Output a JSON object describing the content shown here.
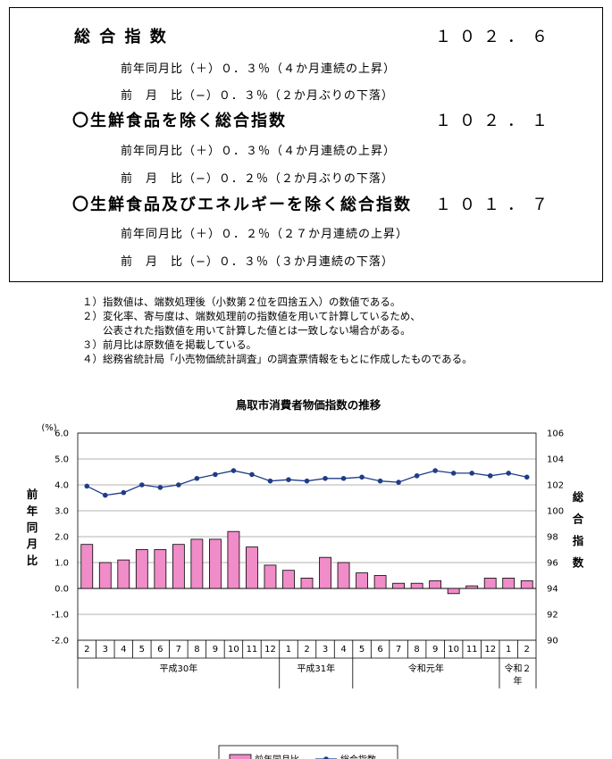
{
  "summary": {
    "rows": [
      {
        "label": "総 合 指 数",
        "value": "１０２．６",
        "subs": [
          "前年同月比（＋）０．３％（４か月連続の上昇）",
          "前　月　比（−）０．３％（２か月ぶりの下落）"
        ]
      },
      {
        "label": "〇生鮮食品を除く総合指数",
        "value": "１０２．１",
        "subs": [
          "前年同月比（＋）０．３％（４か月連続の上昇）",
          "前　月　比（−）０．２％（２か月ぶりの下落）"
        ]
      },
      {
        "label": "〇生鮮食品及びエネルギーを除く総合指数",
        "value": "１０１．７",
        "subs": [
          "前年同月比（＋）０．２％（２７か月連続の上昇）",
          "前　月　比（−）０．３％（３か月連続の下落）"
        ]
      }
    ]
  },
  "notes": [
    "１）指数値は、端数処理後（小数第２位を四捨五入）の数値である。",
    "２）変化率、寄与度は、端数処理前の指数値を用いて計算しているため、",
    "　　公表された指数値を用いて計算した値とは一致しない場合がある。",
    "３）前月比は原数値を掲載している。",
    "４）総務省統計局「小売物価統計調査」の調査票情報をもとに作成したものである。"
  ],
  "chart_data": {
    "type": "bar+line",
    "title": "鳥取市消費者物価指数の推移",
    "left_unit": "(%)",
    "left_axis_label": "前年同月比",
    "right_axis_label": "総合指数",
    "left_ylim": [
      -2.0,
      6.0
    ],
    "left_ticks": [
      "6.0",
      "5.0",
      "4.0",
      "3.0",
      "2.0",
      "1.0",
      "0.0",
      "-1.0",
      "-2.0"
    ],
    "right_ylim": [
      90,
      106
    ],
    "right_ticks": [
      "106",
      "104",
      "102",
      "100",
      "98",
      "96",
      "94",
      "92",
      "90"
    ],
    "categories": [
      "2",
      "3",
      "4",
      "5",
      "6",
      "7",
      "8",
      "9",
      "10",
      "11",
      "12",
      "1",
      "2",
      "3",
      "4",
      "5",
      "6",
      "7",
      "8",
      "9",
      "10",
      "11",
      "12",
      "1",
      "2"
    ],
    "year_groups": [
      {
        "label": "平成30年",
        "count": 11
      },
      {
        "label": "平成31年",
        "count": 4
      },
      {
        "label": "令和元年",
        "count": 8
      },
      {
        "label": "令和２年",
        "count": 2
      }
    ],
    "series": [
      {
        "name": "前年同月比",
        "kind": "bar",
        "axis": "left",
        "color": "#f08cc8",
        "values": [
          1.7,
          1.0,
          1.1,
          1.5,
          1.5,
          1.7,
          1.9,
          1.9,
          2.2,
          1.6,
          0.9,
          0.7,
          0.4,
          1.2,
          1.0,
          0.6,
          0.5,
          0.2,
          0.2,
          0.3,
          -0.2,
          0.1,
          0.4,
          0.4,
          0.3
        ]
      },
      {
        "name": "総合指数",
        "kind": "line",
        "axis": "right",
        "color": "#1f3c88",
        "values": [
          101.9,
          101.2,
          101.4,
          102.0,
          101.8,
          102.0,
          102.5,
          102.8,
          103.1,
          102.8,
          102.3,
          102.4,
          102.3,
          102.5,
          102.5,
          102.6,
          102.3,
          102.2,
          102.7,
          103.1,
          102.9,
          102.9,
          102.7,
          102.9,
          102.6
        ]
      }
    ],
    "grid": true,
    "legend_position": "bottom-center"
  }
}
